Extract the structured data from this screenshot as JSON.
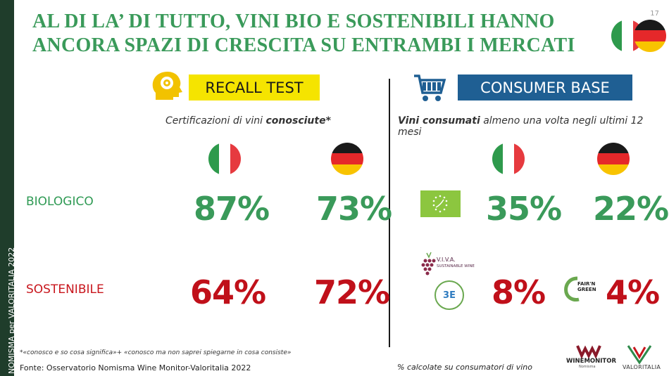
{
  "page_number": "17",
  "sidebar_text": "NOMISMA per VALORITALIA 2022",
  "title_line1": "AL DI LA’ DI TUTTO, VINI BIO E SOSTENIBILI HANNO",
  "title_line2": "ANCORA SPAZI DI CRESCITA SU ENTRAMBI I MERCATI",
  "left_panel": {
    "label": "RECALL TEST",
    "icon": "brain-head-icon",
    "subtitle_pre": "Certificazioni di vini ",
    "subtitle_bold": "conosciute*",
    "rows": [
      {
        "label": "BIOLOGICO",
        "italy": "87%",
        "germany": "73%"
      },
      {
        "label": "SOSTENIBILE",
        "italy": "64%",
        "germany": "72%"
      }
    ],
    "note": "*«conosco e so cosa significa»+ «conosco ma non saprei spiegarne in cosa consiste»"
  },
  "right_panel": {
    "label": "CONSUMER BASE",
    "icon": "shopping-cart-icon",
    "subtitle_bold": "Vini consumati",
    "subtitle_post": " almeno una volta negli ultimi 12 mesi",
    "rows": [
      {
        "italy": "35%",
        "germany": "22%"
      },
      {
        "italy": "8%",
        "germany": "4%"
      }
    ],
    "logos": {
      "viva": "V.I.V.A.",
      "viva_sub": "SUSTAINABLE WINE",
      "three_e": "3E",
      "fairn": "FAIR'N GREEN"
    },
    "footnote": "% calcolate su consumatori di vino"
  },
  "source": "Fonte: Osservatorio Nomisma Wine Monitor-Valoritalia 2022",
  "brand": {
    "wine_monitor": "WINEMONITOR",
    "wine_monitor_sub": "Nomisma",
    "valoritalia": "VALORITALIA"
  },
  "colors": {
    "green": "#3a9a5a",
    "red": "#c0101a",
    "yellow": "#f5e400",
    "blue": "#1f5f93",
    "sidebar": "#1f3d2b"
  }
}
